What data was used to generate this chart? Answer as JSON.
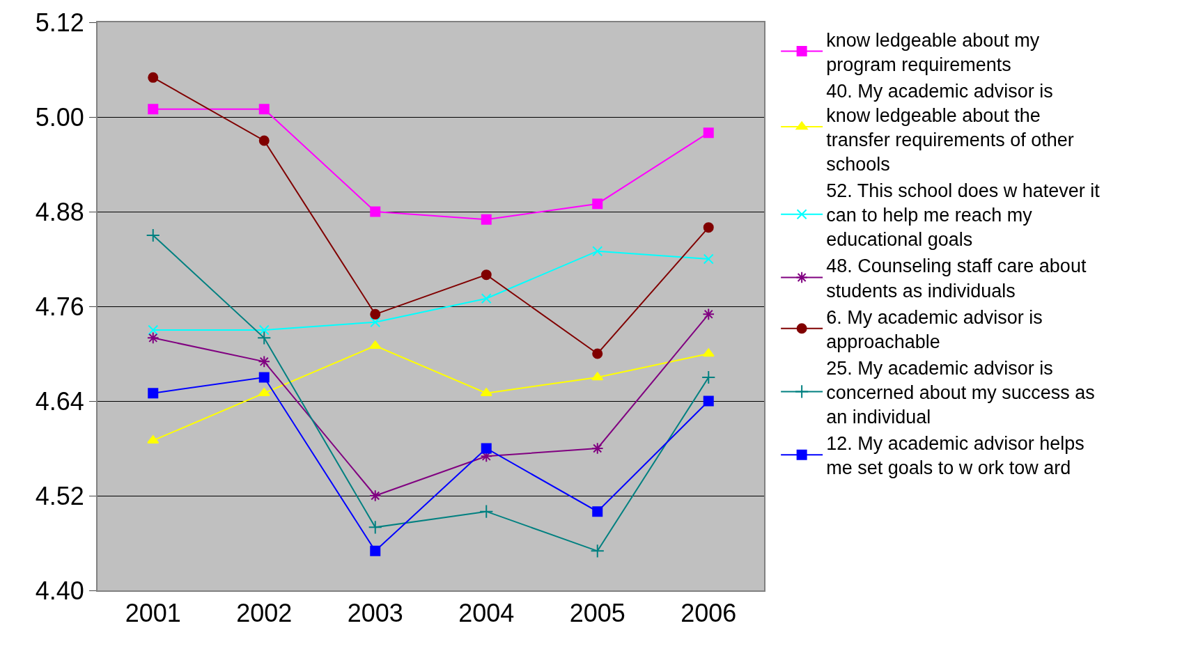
{
  "chart_data": {
    "type": "line",
    "categories": [
      "2001",
      "2002",
      "2003",
      "2004",
      "2005",
      "2006"
    ],
    "ylim": [
      4.4,
      5.12
    ],
    "yticks": [
      {
        "value": 4.4,
        "label": "4.40"
      },
      4.52,
      4.64,
      4.76,
      4.88,
      {
        "value": 5.0,
        "label": "5.00"
      },
      5.12
    ],
    "grid": "y",
    "legend": "right",
    "line_style": "solid",
    "series": [
      {
        "name": "know ledgeable about my\nprogram requirements",
        "color": "#ff00ff",
        "marker": "square",
        "values": [
          5.01,
          5.01,
          4.88,
          4.87,
          4.89,
          4.98
        ]
      },
      {
        "name": "40. My academic advisor is\nknow ledgeable about the\ntransfer requirements of other\nschools",
        "color": "#ffff00",
        "marker": "triangle",
        "values": [
          4.59,
          4.65,
          4.71,
          4.65,
          4.67,
          4.7
        ]
      },
      {
        "name": "52. This school does w hatever it\ncan to help me reach my\neducational goals",
        "color": "#00ffff",
        "marker": "x",
        "values": [
          4.73,
          4.73,
          4.74,
          4.77,
          4.83,
          4.82
        ]
      },
      {
        "name": "48. Counseling staff care about\nstudents as individuals",
        "color": "#800080",
        "marker": "cross",
        "values": [
          4.72,
          4.69,
          4.52,
          4.57,
          4.58,
          4.75
        ]
      },
      {
        "name": "6. My academic advisor is\napproachable",
        "color": "#800000",
        "marker": "circle",
        "values": [
          5.05,
          4.97,
          4.75,
          4.8,
          4.7,
          4.86
        ]
      },
      {
        "name": "25. My academic advisor is\nconcerned about my success as\nan individual",
        "color": "#008080",
        "marker": "plus",
        "values": [
          4.85,
          4.72,
          4.48,
          4.5,
          4.45,
          4.67
        ]
      },
      {
        "name": "12. My academic advisor helps\nme set goals to w ork tow ard",
        "color": "#0000ff",
        "marker": "square",
        "values": [
          4.65,
          4.67,
          4.45,
          4.58,
          4.5,
          4.64
        ]
      }
    ]
  }
}
